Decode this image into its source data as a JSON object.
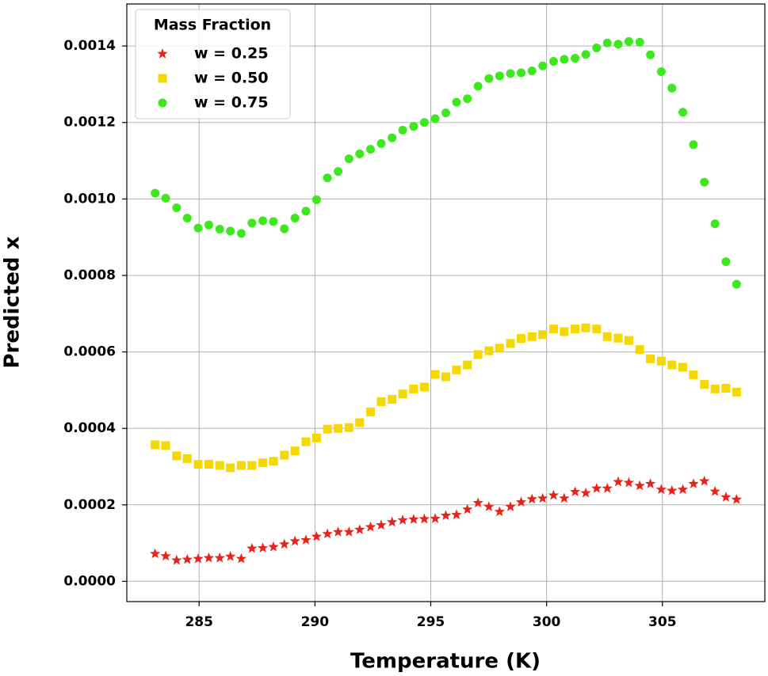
{
  "chart_data": {
    "type": "scatter",
    "xlabel": "Temperature (K)",
    "ylabel": "Predicted x",
    "legend_title": "Mass Fraction",
    "legend": "upper left",
    "grid": true,
    "xlim": [
      281.88,
      309.42
    ],
    "ylim": [
      -5.3e-05,
      0.00151
    ],
    "xticks": [
      285,
      290,
      295,
      300,
      305
    ],
    "yticks": [
      {
        "value": 0,
        "label": "0.0000"
      },
      {
        "value": 0.0002,
        "label": "0.0002"
      },
      {
        "value": 0.0004,
        "label": "0.0004"
      },
      {
        "value": 0.0006,
        "label": "0.0006"
      },
      {
        "value": 0.0008,
        "label": "0.0008"
      },
      {
        "value": 0.001,
        "label": "0.0010"
      },
      {
        "value": 0.0012,
        "label": "0.0012"
      },
      {
        "value": 0.0014,
        "label": "0.0014"
      }
    ],
    "x": [
      283.1,
      283.56,
      284.03,
      284.49,
      284.96,
      285.42,
      285.89,
      286.35,
      286.82,
      287.28,
      287.75,
      288.21,
      288.68,
      289.14,
      289.61,
      290.07,
      290.54,
      291.0,
      291.47,
      291.93,
      292.4,
      292.86,
      293.33,
      293.79,
      294.26,
      294.72,
      295.19,
      295.65,
      296.11,
      296.58,
      297.04,
      297.51,
      297.97,
      298.44,
      298.9,
      299.37,
      299.83,
      300.3,
      300.76,
      301.23,
      301.69,
      302.16,
      302.62,
      303.09,
      303.55,
      304.02,
      304.48,
      304.95,
      305.41,
      305.88,
      306.34,
      306.81,
      307.27,
      307.74,
      308.2
    ],
    "series": [
      {
        "name": "w = 0.25",
        "color": "#e8231a",
        "marker": "star",
        "values": [
          7.2e-05,
          6.6e-05,
          5.5e-05,
          5.7e-05,
          5.9e-05,
          6.1e-05,
          6.1e-05,
          6.5e-05,
          5.9e-05,
          8.6e-05,
          8.7e-05,
          9e-05,
          9.7e-05,
          0.000105,
          0.000108,
          0.000117,
          0.000124,
          0.000129,
          0.000129,
          0.000135,
          0.000142,
          0.000147,
          0.000155,
          0.00016,
          0.000162,
          0.000163,
          0.000164,
          0.000172,
          0.000174,
          0.000188,
          0.000205,
          0.000195,
          0.000182,
          0.000195,
          0.000207,
          0.000215,
          0.000217,
          0.000225,
          0.000217,
          0.000234,
          0.000231,
          0.000243,
          0.000243,
          0.00026,
          0.000258,
          0.00025,
          0.000255,
          0.00024,
          0.000237,
          0.00024,
          0.000255,
          0.000262,
          0.000235,
          0.00022,
          0.000214
        ]
      },
      {
        "name": "w = 0.50",
        "color": "#f5d800",
        "marker": "square",
        "values": [
          0.000357,
          0.000355,
          0.000328,
          0.000321,
          0.000306,
          0.000306,
          0.000303,
          0.000297,
          0.000303,
          0.000303,
          0.00031,
          0.000314,
          0.00033,
          0.000341,
          0.000365,
          0.000375,
          0.000398,
          0.0004,
          0.000402,
          0.000415,
          0.000443,
          0.00047,
          0.000476,
          0.00049,
          0.000503,
          0.000508,
          0.000541,
          0.000535,
          0.000553,
          0.000566,
          0.000593,
          0.000603,
          0.00061,
          0.000622,
          0.000635,
          0.00064,
          0.000645,
          0.00066,
          0.000653,
          0.00066,
          0.000663,
          0.00066,
          0.00064,
          0.000636,
          0.00063,
          0.000606,
          0.000582,
          0.000576,
          0.000566,
          0.00056,
          0.00054,
          0.000515,
          0.000503,
          0.000505,
          0.000495
        ]
      },
      {
        "name": "w = 0.75",
        "color": "#3ee81e",
        "marker": "circle",
        "values": [
          0.001015,
          0.001002,
          0.000977,
          0.00095,
          0.000924,
          0.000932,
          0.000921,
          0.000916,
          0.00091,
          0.000937,
          0.000943,
          0.000941,
          0.000922,
          0.00095,
          0.000968,
          0.000998,
          0.001055,
          0.001072,
          0.001105,
          0.001118,
          0.00113,
          0.001145,
          0.00116,
          0.00118,
          0.00119,
          0.0012,
          0.00121,
          0.001225,
          0.001253,
          0.001262,
          0.001295,
          0.001315,
          0.001322,
          0.001328,
          0.00133,
          0.001335,
          0.001348,
          0.00136,
          0.001365,
          0.001368,
          0.001378,
          0.001395,
          0.001408,
          0.001405,
          0.001412,
          0.00141,
          0.001377,
          0.001333,
          0.00129,
          0.001227,
          0.001142,
          0.001044,
          0.000935,
          0.000836,
          0.000777
        ]
      }
    ]
  }
}
